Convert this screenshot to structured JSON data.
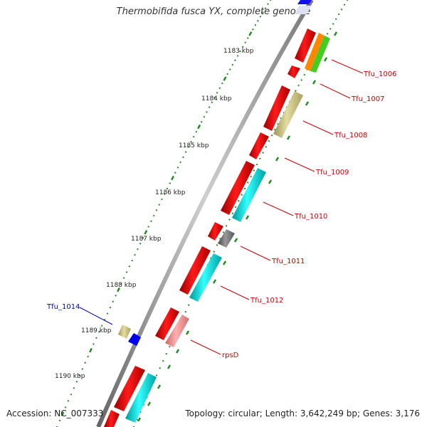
{
  "title": "Thermobifida fusca YX, complete genome",
  "accession": "Accession: NC_007333",
  "summary": "Topology: circular; Length: 3,642,249 bp; Genes: 3,176",
  "ticks": [
    {
      "label": "1183 kbp"
    },
    {
      "label": "1184 kbp"
    },
    {
      "label": "1185 kbp"
    },
    {
      "label": "1186 kbp"
    },
    {
      "label": "1187 kbp"
    },
    {
      "label": "1188 kbp"
    },
    {
      "label": "1189 kbp"
    },
    {
      "label": "1190 kbp"
    }
  ],
  "gene_labels": [
    {
      "text": "Tfu_1006",
      "color": "#cc0000"
    },
    {
      "text": "Tfu_1007",
      "color": "#cc0000"
    },
    {
      "text": "Tfu_1008",
      "color": "#cc0000"
    },
    {
      "text": "Tfu_1009",
      "color": "#cc0000"
    },
    {
      "text": "Tfu_1010",
      "color": "#cc0000"
    },
    {
      "text": "Tfu_1011",
      "color": "#cc0000"
    },
    {
      "text": "Tfu_1012",
      "color": "#cc0000"
    },
    {
      "text": "rpsD",
      "color": "#cc0000"
    },
    {
      "text": "Tfu_1014",
      "color": "#0000cc"
    }
  ],
  "colors": {
    "cds": "#e60000",
    "cog_cyan": "#00cccc",
    "cog_khaki": "#c8c07a",
    "cog_green": "#44cc22",
    "cog_orange": "#ff8800",
    "cog_gray": "#666666",
    "cog_pink": "#f08080",
    "cog_blue": "#0000ee",
    "tick_green": "#228b22",
    "backbone": "#888888"
  }
}
